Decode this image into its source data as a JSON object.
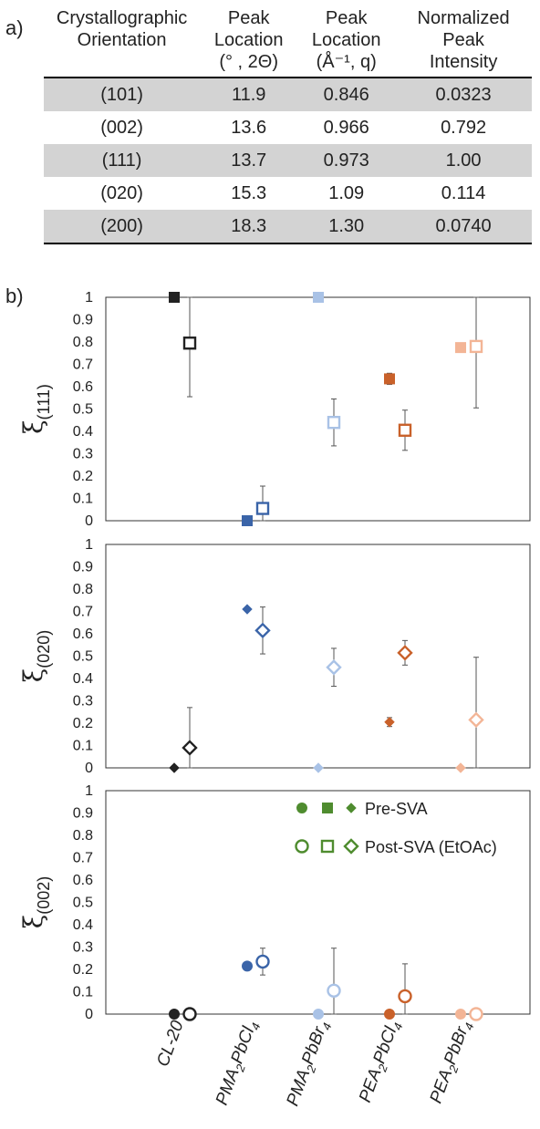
{
  "panel_a_label": "a)",
  "panel_b_label": "b)",
  "table": {
    "headers": [
      [
        "Crystallographic",
        "Orientation"
      ],
      [
        "Peak",
        "Location",
        "(° , 2Θ)"
      ],
      [
        "Peak",
        "Location",
        "(Å⁻¹, q)"
      ],
      [
        "Normalized",
        "Peak",
        "Intensity"
      ]
    ],
    "rows": [
      [
        "(101)",
        "11.9",
        "0.846",
        "0.0323"
      ],
      [
        "(002)",
        "13.6",
        "0.966",
        "0.792"
      ],
      [
        "(111)",
        "13.7",
        "0.973",
        "1.00"
      ],
      [
        "(020)",
        "15.3",
        "1.09",
        "0.114"
      ],
      [
        "(200)",
        "18.3",
        "1.30",
        "0.0740"
      ]
    ]
  },
  "chart_data": {
    "type": "scatter",
    "categories": [
      {
        "base": "CL-20",
        "sub": []
      },
      {
        "base": "PMA",
        "sub": [
          [
            "2",
            "PbCl"
          ],
          [
            "4",
            ""
          ]
        ]
      },
      {
        "base": "PMA",
        "sub": [
          [
            "2",
            "PbBr"
          ],
          [
            "4",
            ""
          ]
        ]
      },
      {
        "base": "PEA",
        "sub": [
          [
            "2",
            "PbCl"
          ],
          [
            "4",
            ""
          ]
        ]
      },
      {
        "base": "PEA",
        "sub": [
          [
            "2",
            "PbBr"
          ],
          [
            "4",
            ""
          ]
        ]
      }
    ],
    "category_colors": [
      "#222222",
      "#3a64a8",
      "#a9c2e6",
      "#c9612a",
      "#f3b596"
    ],
    "legend": {
      "color": "#4f8c2f",
      "entries": [
        "Pre-SVA",
        "Post-SVA (EtOAc)"
      ]
    },
    "ylim": [
      0,
      1
    ],
    "yticks": [
      "0",
      "0.1",
      "0.2",
      "0.3",
      "0.4",
      "0.5",
      "0.6",
      "0.7",
      "0.8",
      "0.9",
      "1"
    ],
    "panels": [
      {
        "ylabel": "ξ",
        "ylabel_sub": "(111)",
        "marker": "square",
        "pre": {
          "values": [
            1.0,
            0.0,
            1.0,
            0.635,
            0.775
          ],
          "errors": [
            0,
            0,
            0,
            0.025,
            0.02
          ]
        },
        "post": {
          "values": [
            0.795,
            0.055,
            0.44,
            0.405,
            0.78
          ],
          "errors": [
            0.24,
            0.1,
            0.105,
            0.09,
            0.275
          ]
        }
      },
      {
        "ylabel": "ξ",
        "ylabel_sub": "(020)",
        "marker": "diamond",
        "pre": {
          "values": [
            0.0,
            0.71,
            0.0,
            0.205,
            0.0
          ],
          "errors": [
            0,
            0,
            0,
            0.02,
            0
          ]
        },
        "post": {
          "values": [
            0.09,
            0.615,
            0.45,
            0.515,
            0.215
          ],
          "errors": [
            0.18,
            0.105,
            0.085,
            0.055,
            0.28
          ]
        }
      },
      {
        "ylabel": "ξ",
        "ylabel_sub": "(002)",
        "marker": "circle",
        "pre": {
          "values": [
            0.0,
            0.215,
            0.0,
            0.0,
            0.0
          ],
          "errors": [
            0,
            0.015,
            0,
            0,
            0
          ]
        },
        "post": {
          "values": [
            0.0,
            0.235,
            0.105,
            0.08,
            0.0
          ],
          "errors": [
            0,
            0.06,
            0.19,
            0.145,
            0
          ]
        }
      }
    ]
  }
}
